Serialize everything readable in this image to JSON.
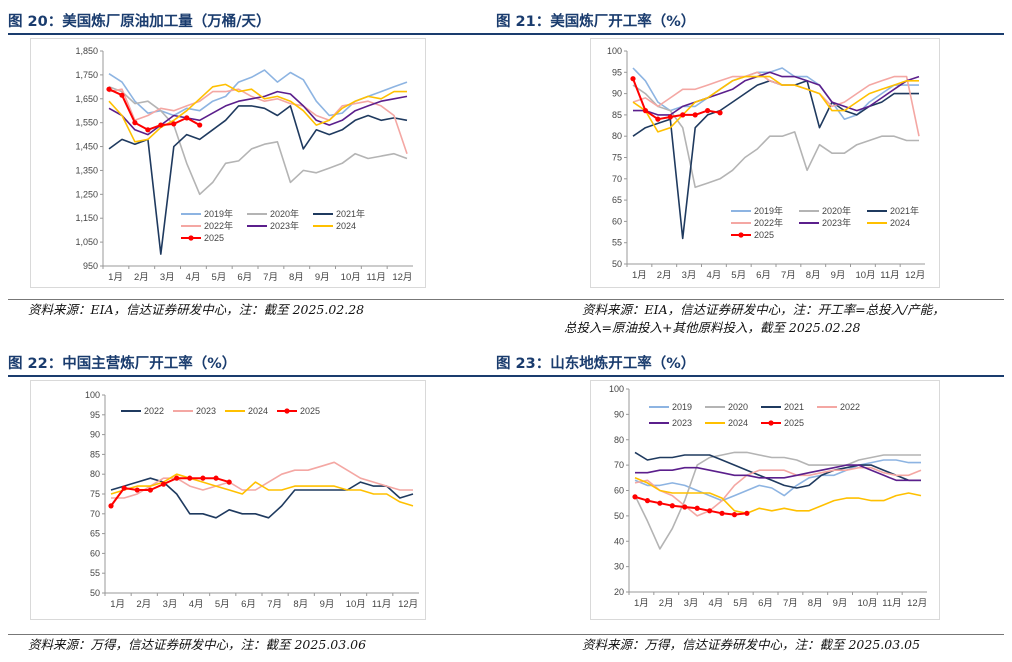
{
  "colors": {
    "title": "#1a3c6e",
    "s2019": "#8db4e2",
    "s2020": "#b4b4b4",
    "s2021": "#1f3a5f",
    "s2022": "#f4a7a3",
    "s2023": "#5b1f8c",
    "s2024": "#ffc000",
    "s2025": "#ff0000"
  },
  "figures": [
    {
      "title": "图 20：美国炼厂原油加工量（万桶/天）",
      "source": [
        "资料来源：EIA，信达证券研发中心，注：截至 2025.02.28"
      ],
      "chart_data": {
        "type": "line",
        "title": "",
        "xlabel": "",
        "ylabel": "",
        "x_ticks": [
          "1月",
          "2月",
          "3月",
          "4月",
          "5月",
          "6月",
          "7月",
          "8月",
          "9月",
          "10月",
          "11月",
          "12月"
        ],
        "ylim": [
          950,
          1850
        ],
        "y_ticks": [
          "950",
          "1,050",
          "1,150",
          "1,250",
          "1,350",
          "1,450",
          "1,550",
          "1,650",
          "1,750",
          "1,850"
        ],
        "legend": "bottom-inside",
        "series": [
          {
            "name": "2019年",
            "color": "#8db4e2",
            "values": [
              1755,
              1720,
              1640,
              1590,
              1600,
              1580,
              1610,
              1600,
              1640,
              1660,
              1720,
              1740,
              1770,
              1720,
              1760,
              1730,
              1640,
              1580,
              1590,
              1640,
              1660,
              1680,
              1700,
              1720
            ]
          },
          {
            "name": "2020年",
            "color": "#b4b4b4",
            "values": [
              1700,
              1680,
              1630,
              1640,
              1600,
              1540,
              1380,
              1250,
              1300,
              1380,
              1390,
              1440,
              1460,
              1470,
              1300,
              1350,
              1340,
              1360,
              1380,
              1420,
              1400,
              1410,
              1420,
              1400
            ]
          },
          {
            "name": "2021年",
            "color": "#1f3a5f",
            "values": [
              1440,
              1480,
              1460,
              1480,
              1000,
              1450,
              1500,
              1480,
              1520,
              1560,
              1620,
              1620,
              1610,
              1580,
              1620,
              1440,
              1520,
              1500,
              1520,
              1560,
              1580,
              1560,
              1570,
              1560
            ]
          },
          {
            "name": "2022年",
            "color": "#f4a7a3",
            "values": [
              1680,
              1690,
              1560,
              1580,
              1610,
              1600,
              1620,
              1640,
              1680,
              1680,
              1690,
              1660,
              1640,
              1650,
              1630,
              1620,
              1580,
              1560,
              1620,
              1630,
              1640,
              1620,
              1580,
              1420
            ]
          },
          {
            "name": "2023年",
            "color": "#5b1f8c",
            "values": [
              1610,
              1580,
              1520,
              1500,
              1540,
              1580,
              1570,
              1560,
              1590,
              1620,
              1640,
              1650,
              1660,
              1680,
              1670,
              1620,
              1560,
              1540,
              1560,
              1600,
              1620,
              1640,
              1650,
              1660
            ]
          },
          {
            "name": "2024",
            "color": "#ffc000",
            "values": [
              1640,
              1580,
              1470,
              1480,
              1530,
              1560,
              1600,
              1650,
              1700,
              1710,
              1680,
              1690,
              1650,
              1660,
              1640,
              1600,
              1540,
              1560,
              1610,
              1640,
              1660,
              1650,
              1680,
              1680
            ]
          },
          {
            "name": "2025",
            "color": "#ff0000",
            "values": [
              1690,
              1665,
              1550,
              1520,
              1540,
              1545,
              1570,
              1540
            ]
          }
        ]
      }
    },
    {
      "title": "图 21：美国炼厂开工率（%）",
      "source": [
        "资料来源：EIA，信达证券研发中心，注：开工率=总投入/产能，",
        "总投入=原油投入+其他原料投入，截至 2025.02.28"
      ],
      "chart_data": {
        "type": "line",
        "title": "",
        "xlabel": "",
        "ylabel": "",
        "x_ticks": [
          "1月",
          "2月",
          "3月",
          "4月",
          "5月",
          "6月",
          "7月",
          "8月",
          "9月",
          "10月",
          "11月",
          "12月"
        ],
        "ylim": [
          50,
          100
        ],
        "y_ticks": [
          "50",
          "55",
          "60",
          "65",
          "70",
          "75",
          "80",
          "85",
          "90",
          "95",
          "100"
        ],
        "legend": "bottom-inside",
        "series": [
          {
            "name": "2019年",
            "color": "#8db4e2",
            "values": [
              96,
              93,
              88,
              86,
              87,
              87,
              89,
              91,
              93,
              94,
              95,
              95,
              96,
              94,
              94,
              92,
              88,
              84,
              85,
              88,
              90,
              92,
              92,
              92
            ]
          },
          {
            "name": "2020年",
            "color": "#b4b4b4",
            "values": [
              92,
              90,
              87,
              86,
              82,
              68,
              69,
              70,
              72,
              75,
              77,
              80,
              80,
              81,
              72,
              78,
              76,
              76,
              78,
              79,
              80,
              80,
              79,
              79
            ]
          },
          {
            "name": "2021年",
            "color": "#1f3a5f",
            "values": [
              80,
              82,
              83,
              84,
              56,
              82,
              85,
              86,
              88,
              90,
              92,
              93,
              92,
              92,
              93,
              82,
              88,
              86,
              85,
              87,
              88,
              90,
              90,
              90
            ]
          },
          {
            "name": "2022年",
            "color": "#f4a7a3",
            "values": [
              88,
              89,
              87,
              89,
              91,
              91,
              92,
              93,
              94,
              94,
              95,
              93,
              92,
              92,
              91,
              90,
              87,
              88,
              90,
              92,
              93,
              94,
              94,
              80
            ]
          },
          {
            "name": "2023年",
            "color": "#5b1f8c",
            "values": [
              86,
              86,
              85,
              85,
              87,
              88,
              89,
              90,
              91,
              93,
              94,
              95,
              94,
              94,
              93,
              92,
              88,
              87,
              86,
              87,
              89,
              91,
              93,
              94
            ]
          },
          {
            "name": "2024",
            "color": "#ffc000",
            "values": [
              88,
              86,
              81,
              82,
              85,
              88,
              89,
              91,
              93,
              94,
              94,
              94,
              92,
              92,
              91,
              90,
              86,
              86,
              88,
              90,
              91,
              92,
              93,
              93
            ]
          },
          {
            "name": "2025",
            "color": "#ff0000",
            "values": [
              93.5,
              86,
              84,
              84.5,
              85,
              85,
              86,
              85.5
            ]
          }
        ]
      }
    },
    {
      "title": "图 22：中国主营炼厂开工率（%）",
      "source": [
        "资料来源：万得，信达证券研发中心，注：截至 2025.03.06"
      ],
      "chart_data": {
        "type": "line",
        "title": "",
        "xlabel": "",
        "ylabel": "",
        "x_ticks": [
          "1月",
          "2月",
          "3月",
          "4月",
          "5月",
          "6月",
          "7月",
          "8月",
          "9月",
          "10月",
          "11月",
          "12月"
        ],
        "ylim": [
          50,
          100
        ],
        "y_ticks": [
          "50",
          "55",
          "60",
          "65",
          "70",
          "75",
          "80",
          "85",
          "90",
          "95",
          "100"
        ],
        "legend": "top-inside",
        "series": [
          {
            "name": "2022",
            "color": "#1f3a5f",
            "values": [
              76,
              77,
              78,
              79,
              78,
              75,
              70,
              70,
              69,
              71,
              70,
              70,
              69,
              72,
              76,
              76,
              76,
              76,
              76,
              78,
              77,
              77,
              74,
              75
            ]
          },
          {
            "name": "2023",
            "color": "#f4a7a3",
            "values": [
              74,
              74,
              75,
              77,
              79,
              79,
              77,
              76,
              77,
              78,
              76,
              76,
              78,
              80,
              81,
              81,
              82,
              83,
              81,
              79,
              78,
              77,
              76,
              76
            ]
          },
          {
            "name": "2024",
            "color": "#ffc000",
            "values": [
              75,
              76,
              77,
              77,
              78,
              80,
              79,
              78,
              77,
              76,
              75,
              78,
              76,
              76,
              77,
              77,
              77,
              77,
              76,
              76,
              75,
              75,
              73,
              72
            ]
          },
          {
            "name": "2025",
            "color": "#ff0000",
            "values": [
              72,
              76.5,
              76,
              76,
              77.5,
              79,
              79,
              79,
              79,
              78
            ]
          }
        ]
      }
    },
    {
      "title": "图 23：山东地炼开工率（%）",
      "source": [
        "资料来源：万得，信达证券研发中心，注：截至 2025.03.05"
      ],
      "chart_data": {
        "type": "line",
        "title": "",
        "xlabel": "",
        "ylabel": "",
        "x_ticks": [
          "1月",
          "2月",
          "3月",
          "4月",
          "5月",
          "6月",
          "7月",
          "8月",
          "9月",
          "10月",
          "11月",
          "12月"
        ],
        "ylim": [
          20,
          100
        ],
        "y_ticks": [
          "20",
          "30",
          "40",
          "50",
          "60",
          "70",
          "80",
          "90",
          "100"
        ],
        "legend": "top-inside",
        "series": [
          {
            "name": "2019",
            "color": "#8db4e2",
            "values": [
              64,
              62,
              62,
              63,
              62,
              60,
              58,
              56,
              58,
              60,
              62,
              61,
              58,
              62,
              65,
              66,
              66,
              68,
              70,
              71,
              72,
              72,
              71,
              71
            ]
          },
          {
            "name": "2020",
            "color": "#b4b4b4",
            "values": [
              58,
              48,
              37,
              45,
              56,
              70,
              73,
              74,
              75,
              75,
              74,
              73,
              73,
              72,
              70,
              70,
              70,
              70,
              72,
              73,
              74,
              74,
              74,
              74
            ]
          },
          {
            "name": "2021",
            "color": "#1f3a5f",
            "values": [
              75,
              72,
              73,
              73,
              74,
              74,
              74,
              72,
              70,
              68,
              66,
              64,
              62,
              61,
              62,
              66,
              68,
              69,
              70,
              70,
              68,
              66,
              64,
              64
            ]
          },
          {
            "name": "2022",
            "color": "#f4a7a3",
            "values": [
              63,
              64,
              60,
              58,
              54,
              50,
              52,
              56,
              62,
              66,
              68,
              68,
              68,
              66,
              66,
              67,
              68,
              68,
              69,
              69,
              67,
              66,
              66,
              68
            ]
          },
          {
            "name": "2023",
            "color": "#5b1f8c",
            "values": [
              67,
              67,
              68,
              68,
              69,
              69,
              68,
              67,
              66,
              66,
              65,
              65,
              65,
              66,
              67,
              68,
              69,
              70,
              70,
              68,
              66,
              64,
              64,
              64
            ]
          },
          {
            "name": "2024",
            "color": "#ffc000",
            "values": [
              65,
              63,
              60,
              59,
              59,
              59,
              59,
              57,
              52,
              51,
              53,
              52,
              53,
              52,
              52,
              54,
              56,
              57,
              57,
              56,
              56,
              58,
              59,
              58
            ]
          },
          {
            "name": "2025",
            "color": "#ff0000",
            "values": [
              57.5,
              56,
              55,
              54,
              53.5,
              53,
              52,
              51,
              50.5,
              51
            ]
          }
        ]
      }
    }
  ]
}
